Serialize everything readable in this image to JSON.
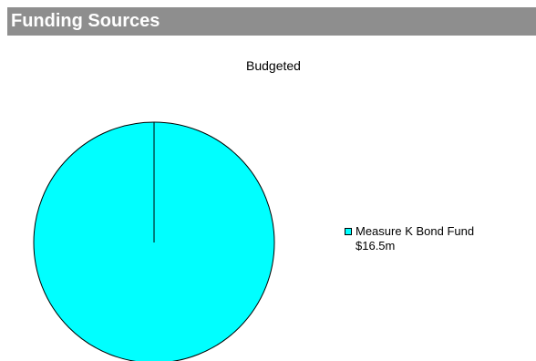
{
  "header": {
    "title": "Funding Sources",
    "background_color": "#8e8e8e"
  },
  "chart_data": {
    "type": "pie",
    "title": "Budgeted",
    "slices": [
      {
        "label": "Measure K Bond Fund",
        "value": 16.5,
        "value_label": "$16.5m",
        "color": "#00ffff"
      }
    ],
    "legend_position": "right"
  }
}
